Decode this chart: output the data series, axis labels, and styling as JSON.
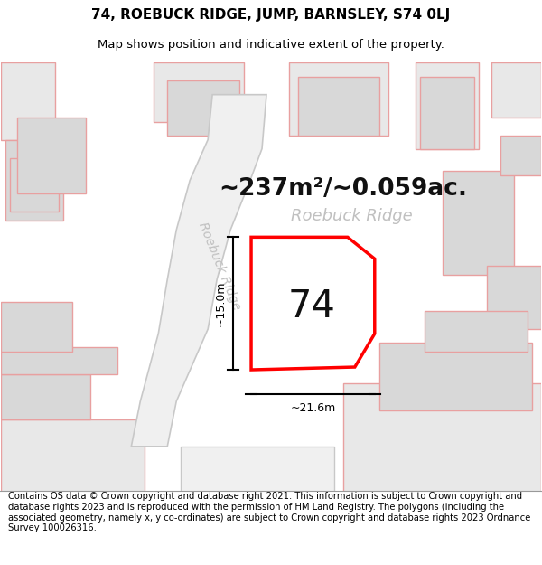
{
  "title_line1": "74, ROEBUCK RIDGE, JUMP, BARNSLEY, S74 0LJ",
  "title_line2": "Map shows position and indicative extent of the property.",
  "area_text": "~237m²/~0.059ac.",
  "street_label_diag": "Roebuck Ridge",
  "street_label_horiz": "Roebuck Ridge",
  "number_label": "74",
  "dim_height": "~15.0m",
  "dim_width": "~21.6m",
  "footer_text": "Contains OS data © Crown copyright and database right 2021. This information is subject to Crown copyright and database rights 2023 and is reproduced with the permission of HM Land Registry. The polygons (including the associated geometry, namely x, y co-ordinates) are subject to Crown copyright and database rights 2023 Ordnance Survey 100026316.",
  "bg_color": "#ffffff",
  "map_bg": "#ffffff",
  "outline_color": "#e8a0a0",
  "fill_light_gray": "#e8e8e8",
  "fill_mid_gray": "#d8d8d8",
  "plot_outline": "#ff0000",
  "plot_fill": "#ffffff",
  "dim_color": "#000000",
  "street_text_color": "#c0c0c0",
  "title_color": "#000000",
  "footer_color": "#000000",
  "title_fontsize": 11,
  "subtitle_fontsize": 9.5,
  "area_fontsize": 19,
  "number_fontsize": 30,
  "street_diag_fontsize": 10,
  "street_horiz_fontsize": 13,
  "dim_fontsize": 9,
  "footer_fontsize": 7.2
}
